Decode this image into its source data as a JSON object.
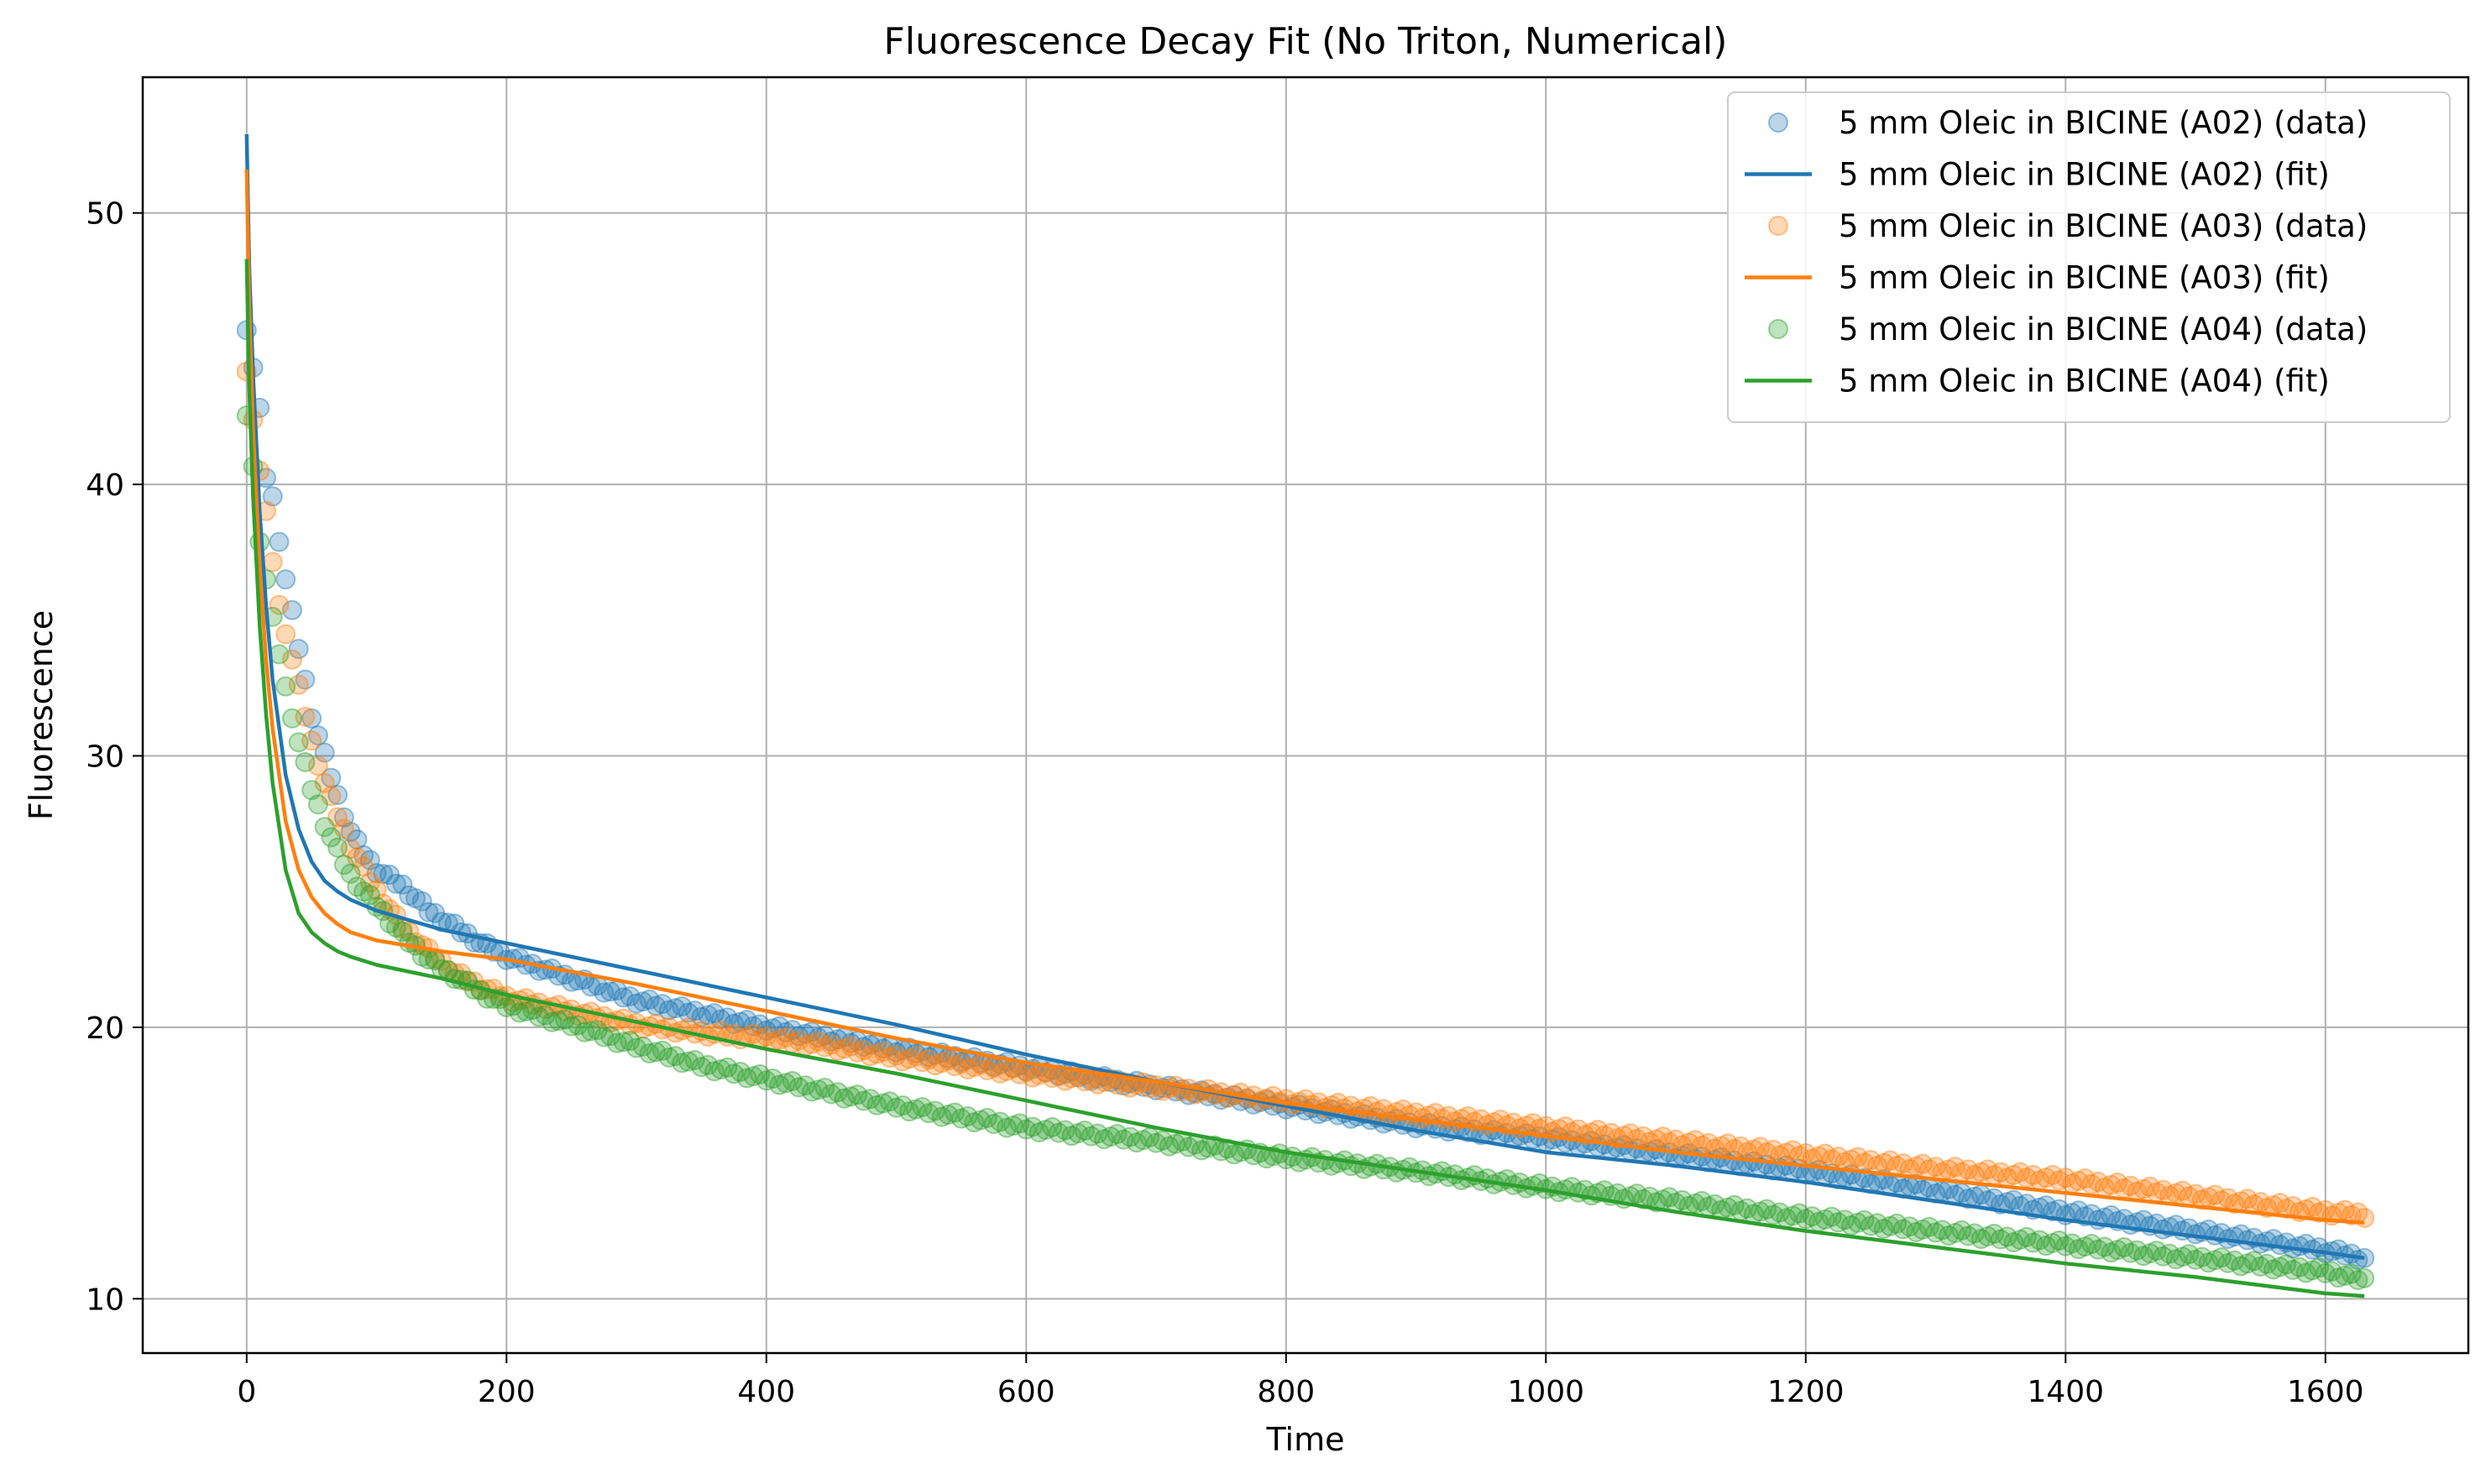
{
  "chart_data": {
    "type": "scatter",
    "title": "Fluorescence Decay Fit (No Triton, Numerical)",
    "xlabel": "Time",
    "ylabel": "Fluorescence",
    "xlim": [
      -80,
      1710
    ],
    "ylim": [
      8,
      55
    ],
    "xticks": [
      0,
      200,
      400,
      600,
      800,
      1000,
      1200,
      1400,
      1600
    ],
    "yticks": [
      10,
      20,
      30,
      40,
      50
    ],
    "grid": true,
    "legend_position": "top-right",
    "series": [
      {
        "name": "5 mm Oleic in BICINE (A02) (data)",
        "kind": "scatter",
        "color": "#1f77b4",
        "x": [
          0,
          5,
          10,
          15,
          20,
          25,
          30,
          40,
          50,
          60,
          70,
          80,
          90,
          100,
          120,
          140,
          160,
          180,
          200,
          250,
          300,
          350,
          400,
          450,
          500,
          600,
          700,
          800,
          900,
          1000,
          1100,
          1200,
          1300,
          1400,
          1500,
          1600,
          1630
        ],
        "y": [
          45.8,
          44.3,
          42.7,
          40.3,
          39.5,
          38.0,
          36.5,
          34.0,
          31.5,
          30.0,
          28.5,
          27.2,
          26.4,
          25.8,
          25.2,
          24.3,
          23.7,
          23.1,
          22.6,
          21.8,
          21.0,
          20.5,
          20.0,
          19.6,
          19.2,
          18.5,
          17.8,
          17.1,
          16.4,
          15.9,
          15.3,
          14.7,
          14.0,
          13.2,
          12.5,
          11.8,
          11.5
        ]
      },
      {
        "name": "5 mm Oleic in BICINE (A02) (fit)",
        "kind": "line",
        "color": "#1f77b4",
        "x": [
          0,
          2,
          5,
          10,
          15,
          20,
          30,
          40,
          50,
          60,
          70,
          80,
          100,
          150,
          200,
          300,
          400,
          500,
          600,
          700,
          800,
          900,
          1000,
          1100,
          1200,
          1300,
          1400,
          1500,
          1600,
          1630
        ],
        "y": [
          52.9,
          48.0,
          44.0,
          39.0,
          35.5,
          32.8,
          29.3,
          27.3,
          26.1,
          25.4,
          25.0,
          24.7,
          24.3,
          23.6,
          23.1,
          22.1,
          21.1,
          20.1,
          19.0,
          18.0,
          17.1,
          16.2,
          15.4,
          14.9,
          14.3,
          13.6,
          12.9,
          12.3,
          11.7,
          11.5
        ]
      },
      {
        "name": "5 mm Oleic in BICINE (A03) (data)",
        "kind": "scatter",
        "color": "#ff7f0e",
        "x": [
          0,
          5,
          10,
          15,
          20,
          25,
          30,
          40,
          50,
          60,
          70,
          80,
          90,
          100,
          120,
          140,
          160,
          180,
          200,
          250,
          300,
          350,
          400,
          450,
          500,
          600,
          700,
          800,
          900,
          1000,
          1100,
          1200,
          1300,
          1400,
          1500,
          1600,
          1630
        ],
        "y": [
          44.1,
          42.5,
          40.5,
          38.9,
          37.2,
          35.5,
          34.6,
          32.5,
          30.5,
          29.0,
          27.8,
          26.7,
          25.8,
          25.0,
          23.7,
          22.8,
          22.0,
          21.5,
          21.1,
          20.6,
          20.1,
          19.8,
          19.6,
          19.3,
          18.9,
          18.3,
          17.8,
          17.3,
          16.8,
          16.3,
          15.8,
          15.3,
          14.8,
          14.4,
          13.8,
          13.2,
          13.1
        ]
      },
      {
        "name": "5 mm Oleic in BICINE (A03) (fit)",
        "kind": "line",
        "color": "#ff7f0e",
        "x": [
          0,
          2,
          5,
          10,
          15,
          20,
          30,
          40,
          50,
          60,
          70,
          80,
          100,
          150,
          200,
          300,
          400,
          500,
          600,
          700,
          800,
          900,
          1000,
          1100,
          1200,
          1300,
          1400,
          1500,
          1600,
          1630
        ],
        "y": [
          51.6,
          46.5,
          42.0,
          37.0,
          33.5,
          31.0,
          27.6,
          25.8,
          24.8,
          24.2,
          23.8,
          23.5,
          23.2,
          22.8,
          22.5,
          21.6,
          20.6,
          19.6,
          18.7,
          18.0,
          17.2,
          16.6,
          16.0,
          15.4,
          14.9,
          14.4,
          13.9,
          13.4,
          12.9,
          12.8
        ]
      },
      {
        "name": "5 mm Oleic in BICINE (A04) (data)",
        "kind": "scatter",
        "color": "#2ca02c",
        "x": [
          0,
          5,
          10,
          15,
          20,
          25,
          30,
          40,
          50,
          60,
          70,
          80,
          90,
          100,
          120,
          140,
          160,
          180,
          200,
          250,
          300,
          350,
          400,
          450,
          500,
          600,
          700,
          800,
          900,
          1000,
          1100,
          1200,
          1300,
          1400,
          1500,
          1600,
          1630
        ],
        "y": [
          42.6,
          40.6,
          38.0,
          36.5,
          35.0,
          33.8,
          32.5,
          30.5,
          28.8,
          27.5,
          26.5,
          25.6,
          25.0,
          24.5,
          23.4,
          22.5,
          21.9,
          21.3,
          20.8,
          20.1,
          19.3,
          18.6,
          18.1,
          17.6,
          17.1,
          16.3,
          15.8,
          15.2,
          14.7,
          14.1,
          13.6,
          13.0,
          12.5,
          12.0,
          11.5,
          11.0,
          10.7
        ]
      },
      {
        "name": "5 mm Oleic in BICINE (A04) (fit)",
        "kind": "line",
        "color": "#2ca02c",
        "x": [
          0,
          2,
          5,
          10,
          15,
          20,
          30,
          40,
          50,
          60,
          70,
          80,
          100,
          150,
          200,
          300,
          400,
          500,
          600,
          700,
          800,
          900,
          1000,
          1100,
          1200,
          1300,
          1400,
          1500,
          1600,
          1630
        ],
        "y": [
          48.3,
          43.5,
          39.5,
          34.8,
          31.5,
          29.0,
          25.8,
          24.2,
          23.5,
          23.1,
          22.8,
          22.6,
          22.3,
          21.8,
          21.2,
          20.2,
          19.2,
          18.3,
          17.3,
          16.3,
          15.4,
          14.7,
          14.0,
          13.2,
          12.5,
          11.9,
          11.3,
          10.8,
          10.2,
          10.1
        ]
      }
    ]
  }
}
